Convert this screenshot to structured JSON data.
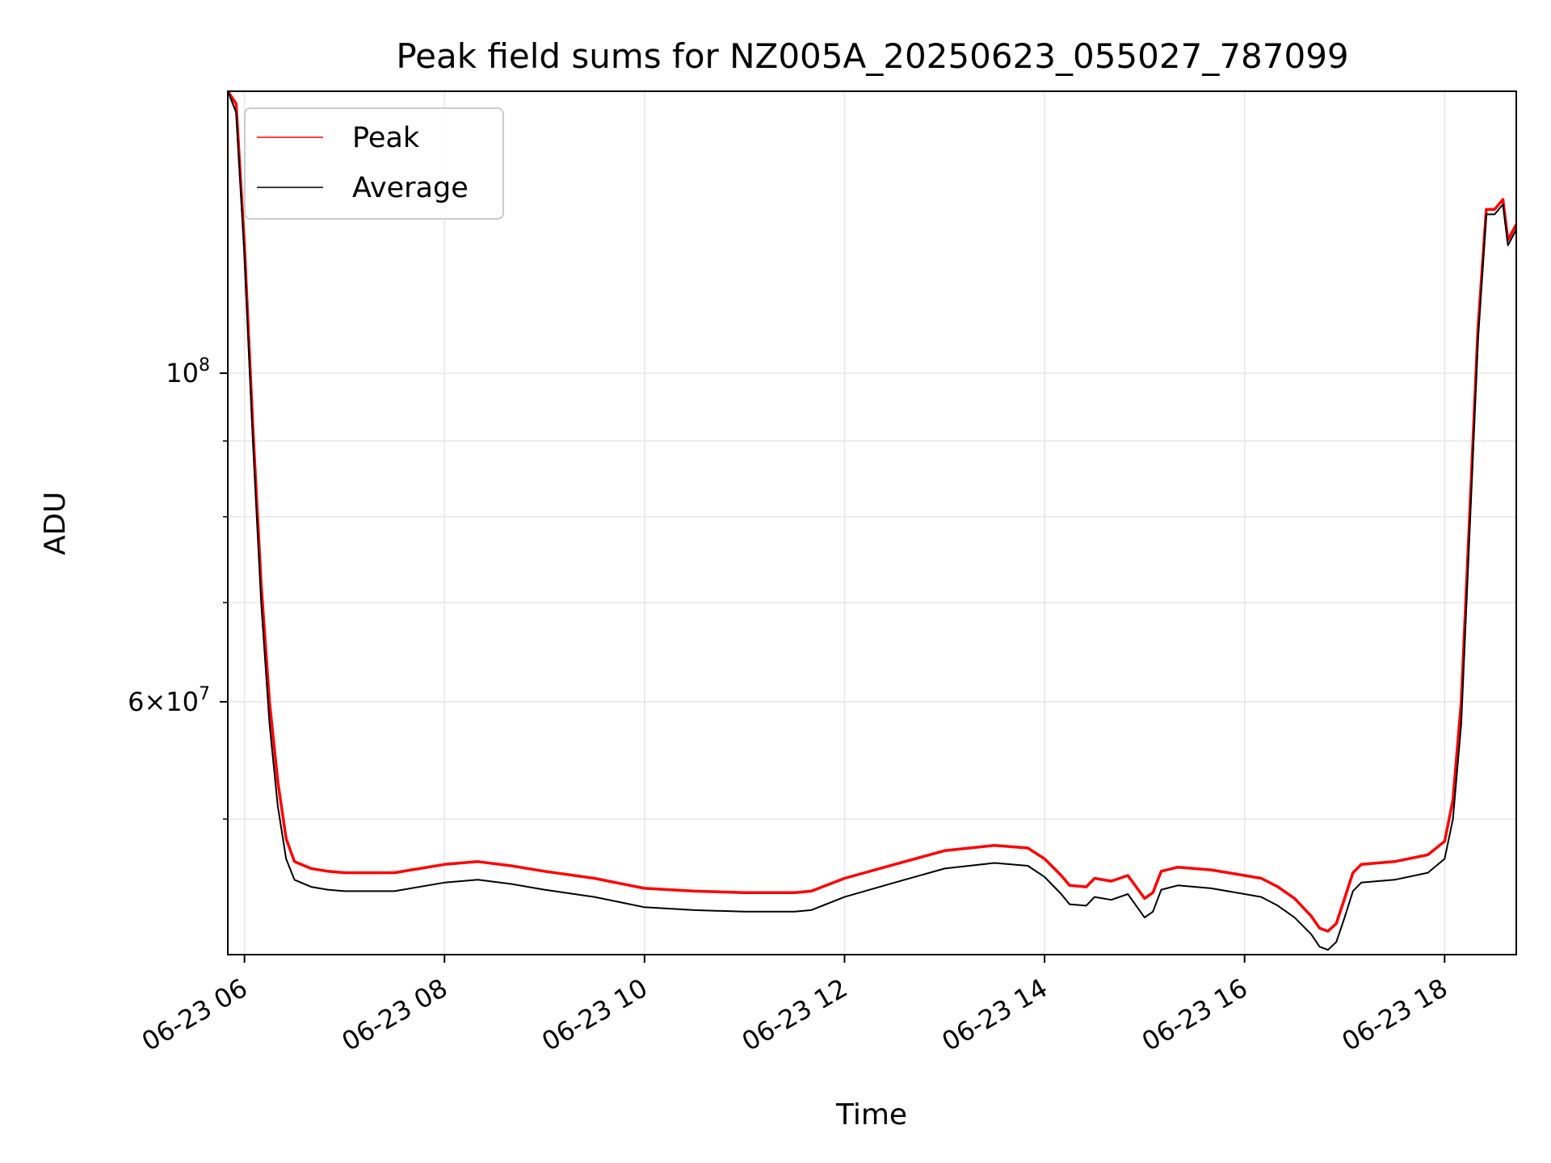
{
  "chart_data": {
    "type": "line",
    "title": "Peak field sums for NZ005A_20250623_055027_787099",
    "xlabel": "Time",
    "ylabel": "ADU",
    "yscale": "log",
    "ylim": [
      40500000,
      155000000
    ],
    "xlim": [
      "2025-06-23 05:50",
      "2025-06-23 18:43"
    ],
    "x_ticks": [
      "06-23 06",
      "06-23 08",
      "06-23 10",
      "06-23 12",
      "06-23 14",
      "06-23 16",
      "06-23 18"
    ],
    "y_ticks": [
      {
        "value": 100000000,
        "base": "10",
        "exp": "8",
        "mant": ""
      },
      {
        "value": 60000000,
        "base": "10",
        "exp": "7",
        "mant": "6×"
      }
    ],
    "grid": true,
    "legend": {
      "position": "upper left",
      "entries": [
        "Peak",
        "Average"
      ]
    },
    "colors": {
      "Peak": "#ff0000",
      "Average": "#000000"
    },
    "series": [
      {
        "name": "Average",
        "x": [
          "2025-06-23 05:50",
          "2025-06-23 05:55",
          "2025-06-23 06:00",
          "2025-06-23 06:05",
          "2025-06-23 06:10",
          "2025-06-23 06:15",
          "2025-06-23 06:20",
          "2025-06-23 06:25",
          "2025-06-23 06:30",
          "2025-06-23 06:40",
          "2025-06-23 06:50",
          "2025-06-23 07:00",
          "2025-06-23 07:30",
          "2025-06-23 08:00",
          "2025-06-23 08:20",
          "2025-06-23 08:40",
          "2025-06-23 09:00",
          "2025-06-23 09:30",
          "2025-06-23 10:00",
          "2025-06-23 10:30",
          "2025-06-23 11:00",
          "2025-06-23 11:30",
          "2025-06-23 11:40",
          "2025-06-23 12:00",
          "2025-06-23 12:30",
          "2025-06-23 13:00",
          "2025-06-23 13:30",
          "2025-06-23 13:50",
          "2025-06-23 14:00",
          "2025-06-23 14:10",
          "2025-06-23 14:15",
          "2025-06-23 14:25",
          "2025-06-23 14:30",
          "2025-06-23 14:40",
          "2025-06-23 14:50",
          "2025-06-23 15:00",
          "2025-06-23 15:05",
          "2025-06-23 15:10",
          "2025-06-23 15:20",
          "2025-06-23 15:40",
          "2025-06-23 16:00",
          "2025-06-23 16:10",
          "2025-06-23 16:20",
          "2025-06-23 16:30",
          "2025-06-23 16:40",
          "2025-06-23 16:45",
          "2025-06-23 16:50",
          "2025-06-23 16:55",
          "2025-06-23 17:00",
          "2025-06-23 17:05",
          "2025-06-23 17:10",
          "2025-06-23 17:30",
          "2025-06-23 17:50",
          "2025-06-23 18:00",
          "2025-06-23 18:05",
          "2025-06-23 18:10",
          "2025-06-23 18:15",
          "2025-06-23 18:20",
          "2025-06-23 18:25",
          "2025-06-23 18:30",
          "2025-06-23 18:35",
          "2025-06-23 18:38",
          "2025-06-23 18:43"
        ],
        "y": [
          155000000,
          150000000,
          120000000,
          90000000,
          70000000,
          58000000,
          51000000,
          47000000,
          45500000,
          45000000,
          44800000,
          44700000,
          44700000,
          45300000,
          45500000,
          45200000,
          44800000,
          44300000,
          43600000,
          43400000,
          43300000,
          43300000,
          43400000,
          44300000,
          45300000,
          46300000,
          46700000,
          46500000,
          45700000,
          44500000,
          43800000,
          43700000,
          44300000,
          44100000,
          44500000,
          42900000,
          43300000,
          44800000,
          45100000,
          44900000,
          44500000,
          44300000,
          43700000,
          42900000,
          41800000,
          41000000,
          40800000,
          41300000,
          42900000,
          44700000,
          45300000,
          45500000,
          46000000,
          47000000,
          50000000,
          58000000,
          78000000,
          105000000,
          128000000,
          128000000,
          130000000,
          122000000,
          125000000
        ]
      },
      {
        "name": "Peak",
        "x": [
          "2025-06-23 05:50",
          "2025-06-23 05:55",
          "2025-06-23 06:00",
          "2025-06-23 06:05",
          "2025-06-23 06:10",
          "2025-06-23 06:15",
          "2025-06-23 06:20",
          "2025-06-23 06:25",
          "2025-06-23 06:30",
          "2025-06-23 06:40",
          "2025-06-23 06:50",
          "2025-06-23 07:00",
          "2025-06-23 07:30",
          "2025-06-23 08:00",
          "2025-06-23 08:20",
          "2025-06-23 08:40",
          "2025-06-23 09:00",
          "2025-06-23 09:30",
          "2025-06-23 10:00",
          "2025-06-23 10:30",
          "2025-06-23 11:00",
          "2025-06-23 11:30",
          "2025-06-23 11:40",
          "2025-06-23 12:00",
          "2025-06-23 12:30",
          "2025-06-23 13:00",
          "2025-06-23 13:30",
          "2025-06-23 13:50",
          "2025-06-23 14:00",
          "2025-06-23 14:10",
          "2025-06-23 14:15",
          "2025-06-23 14:25",
          "2025-06-23 14:30",
          "2025-06-23 14:40",
          "2025-06-23 14:50",
          "2025-06-23 15:00",
          "2025-06-23 15:05",
          "2025-06-23 15:10",
          "2025-06-23 15:20",
          "2025-06-23 15:40",
          "2025-06-23 16:00",
          "2025-06-23 16:10",
          "2025-06-23 16:20",
          "2025-06-23 16:30",
          "2025-06-23 16:40",
          "2025-06-23 16:45",
          "2025-06-23 16:50",
          "2025-06-23 16:55",
          "2025-06-23 17:00",
          "2025-06-23 17:05",
          "2025-06-23 17:10",
          "2025-06-23 17:30",
          "2025-06-23 17:50",
          "2025-06-23 18:00",
          "2025-06-23 18:05",
          "2025-06-23 18:10",
          "2025-06-23 18:15",
          "2025-06-23 18:20",
          "2025-06-23 18:25",
          "2025-06-23 18:30",
          "2025-06-23 18:35",
          "2025-06-23 18:38",
          "2025-06-23 18:43"
        ],
        "y": [
          155000000,
          152000000,
          122000000,
          92000000,
          72000000,
          60000000,
          53000000,
          48500000,
          46800000,
          46300000,
          46100000,
          46000000,
          46000000,
          46600000,
          46800000,
          46500000,
          46100000,
          45600000,
          44900000,
          44700000,
          44600000,
          44600000,
          44700000,
          45600000,
          46600000,
          47600000,
          48000000,
          47800000,
          47000000,
          45800000,
          45100000,
          45000000,
          45600000,
          45400000,
          45800000,
          44200000,
          44600000,
          46100000,
          46400000,
          46200000,
          45800000,
          45600000,
          45000000,
          44200000,
          43000000,
          42200000,
          42000000,
          42500000,
          44200000,
          46000000,
          46600000,
          46800000,
          47300000,
          48300000,
          51500000,
          60000000,
          80000000,
          107000000,
          129000000,
          129000000,
          131000000,
          123000000,
          126000000
        ]
      }
    ]
  }
}
